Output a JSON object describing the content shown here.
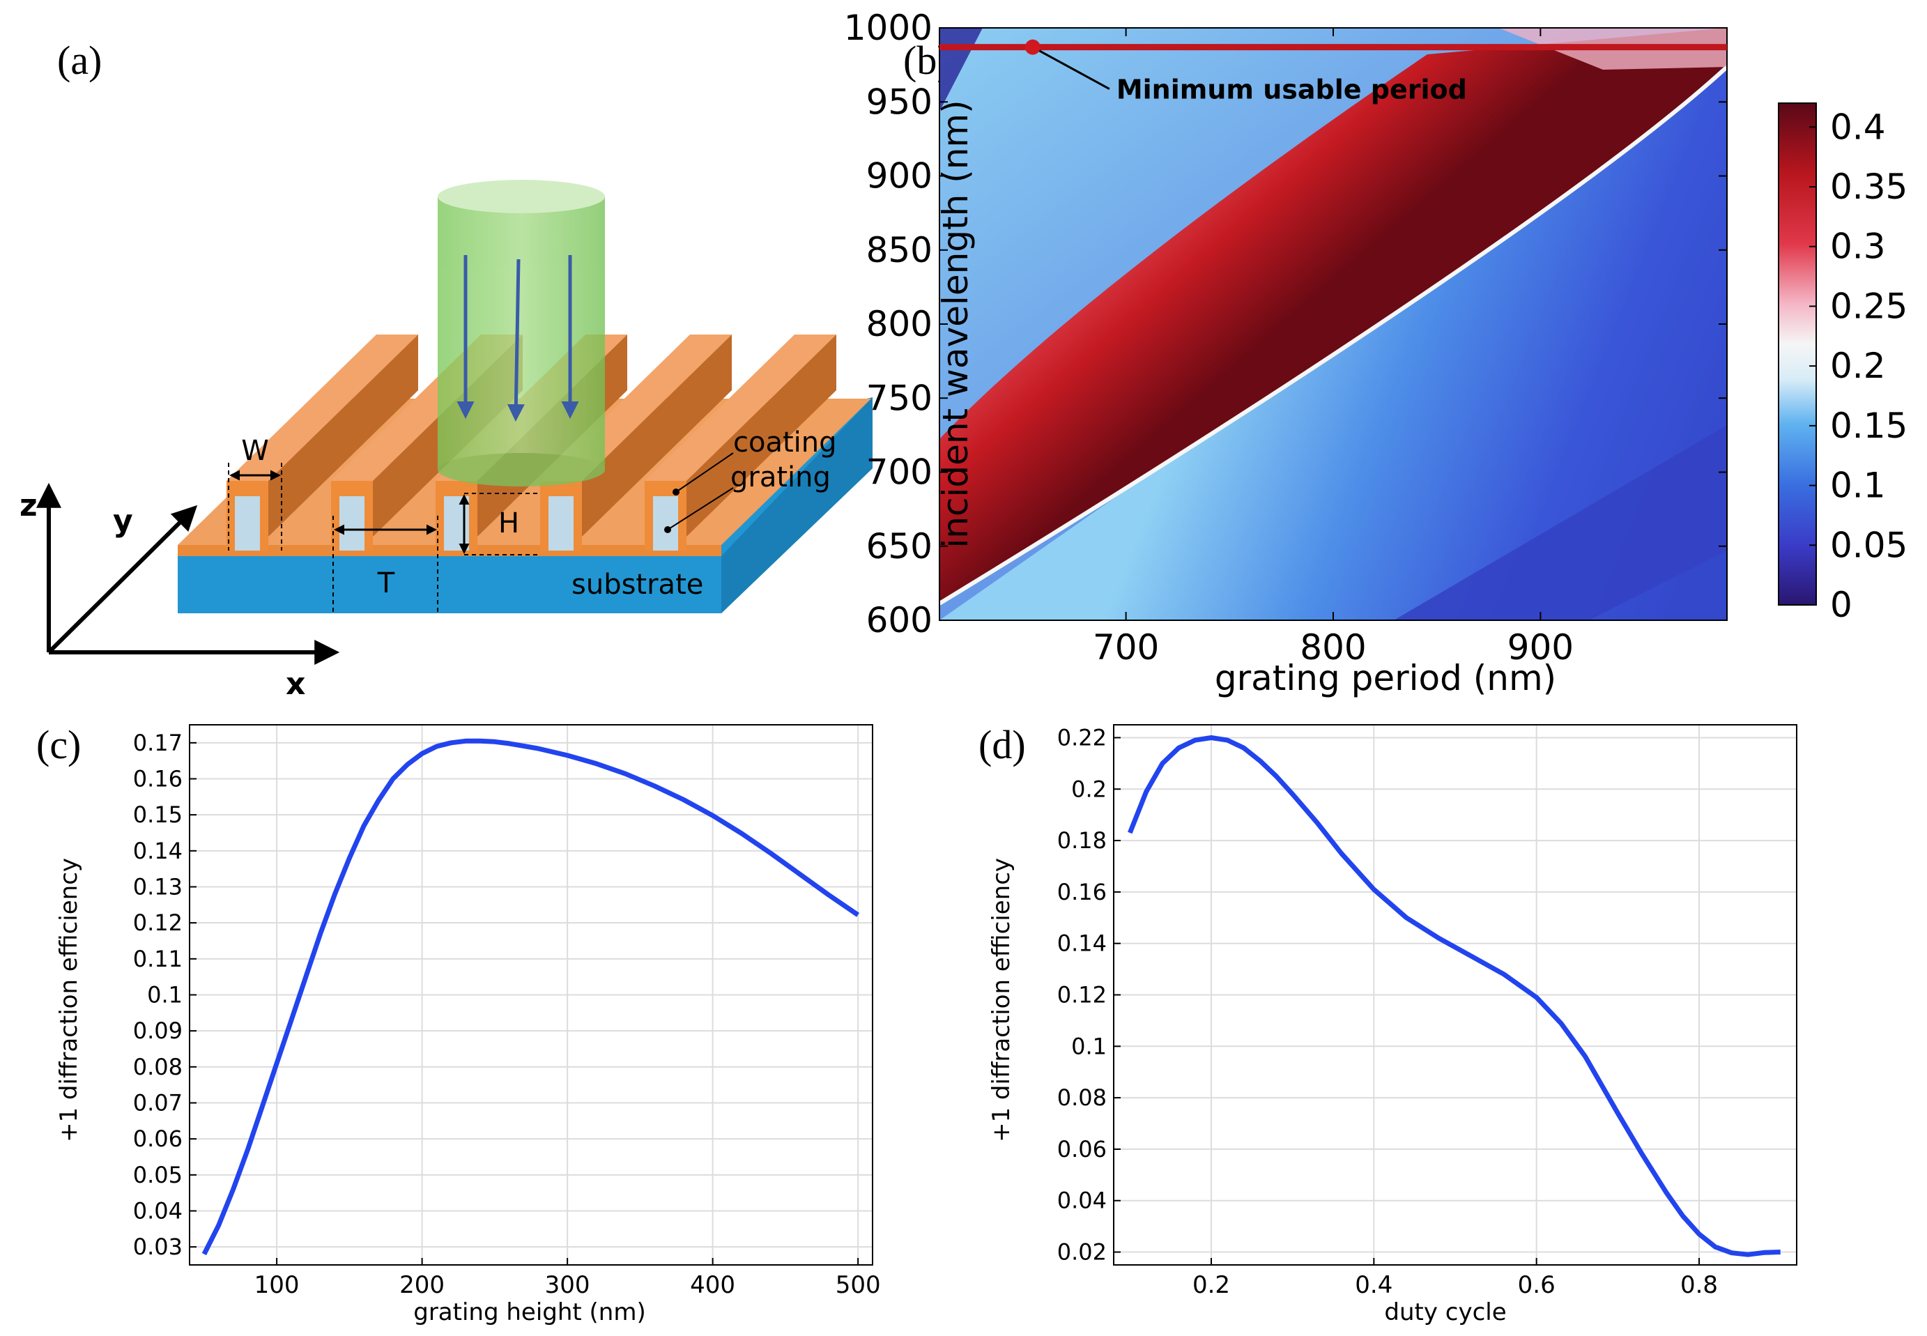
{
  "panels": {
    "a": {
      "label": "(a)",
      "axes": {
        "x": "x",
        "y": "y",
        "z": "z"
      },
      "labels": {
        "W": "W",
        "H": "H",
        "T": "T",
        "coating": "coating",
        "grating": "grating",
        "substrate": "substrate"
      },
      "colors": {
        "grating": "#F0A060",
        "substrate": "#2296D2",
        "beam": "#8ED06A",
        "arrow": "#3A5BA8"
      }
    },
    "b": {
      "label": "(b)"
    },
    "c": {
      "label": "(c)"
    },
    "d": {
      "label": "(d)"
    }
  },
  "chart_data": [
    {
      "id": "b",
      "type": "heatmap",
      "xlabel": "grating period (nm)",
      "ylabel": "incident wavelength (nm)",
      "xlim": [
        610,
        990
      ],
      "ylim": [
        600,
        1000
      ],
      "xticks": [
        700,
        800,
        900
      ],
      "yticks": [
        600,
        650,
        700,
        750,
        800,
        850,
        900,
        950,
        1000
      ],
      "annotation": {
        "text": "Minimum usable period",
        "x": 655,
        "y": 987
      },
      "line": {
        "y": 987,
        "color": "#C0161E"
      },
      "colorbar": {
        "min": 0,
        "max": 0.42,
        "ticks": [
          0,
          0.05,
          0.1,
          0.15,
          0.2,
          0.25,
          0.3,
          0.35,
          0.4
        ]
      }
    },
    {
      "id": "c",
      "type": "line",
      "xlabel": "grating height (nm)",
      "ylabel": "+1 diffraction efficiency",
      "xlim": [
        40,
        510
      ],
      "ylim": [
        0.025,
        0.175
      ],
      "xticks": [
        100,
        200,
        300,
        400,
        500
      ],
      "yticks": [
        0.03,
        0.04,
        0.05,
        0.06,
        0.07,
        0.08,
        0.09,
        0.1,
        0.11,
        0.12,
        0.13,
        0.14,
        0.15,
        0.16,
        0.17
      ],
      "color": "#2244EE",
      "x": [
        50,
        60,
        70,
        80,
        90,
        100,
        110,
        120,
        130,
        140,
        150,
        160,
        170,
        180,
        190,
        200,
        210,
        220,
        230,
        240,
        250,
        260,
        280,
        300,
        320,
        340,
        360,
        380,
        400,
        420,
        440,
        460,
        480,
        500
      ],
      "y": [
        0.028,
        0.036,
        0.046,
        0.057,
        0.069,
        0.081,
        0.093,
        0.105,
        0.117,
        0.128,
        0.138,
        0.147,
        0.154,
        0.16,
        0.164,
        0.167,
        0.169,
        0.17,
        0.1705,
        0.1705,
        0.1703,
        0.1698,
        0.1684,
        0.1665,
        0.1642,
        0.1614,
        0.158,
        0.1542,
        0.1498,
        0.1448,
        0.1393,
        0.1335,
        0.1277,
        0.1222
      ]
    },
    {
      "id": "d",
      "type": "line",
      "xlabel": "duty cycle",
      "ylabel": "+1 diffraction efficiency",
      "xlim": [
        0.08,
        0.92
      ],
      "ylim": [
        0.015,
        0.225
      ],
      "xticks": [
        0.2,
        0.4,
        0.6,
        0.8
      ],
      "yticks": [
        0.02,
        0.04,
        0.06,
        0.08,
        0.1,
        0.12,
        0.14,
        0.16,
        0.18,
        0.2,
        0.22
      ],
      "color": "#2244EE",
      "x": [
        0.1,
        0.12,
        0.14,
        0.16,
        0.18,
        0.2,
        0.22,
        0.24,
        0.26,
        0.28,
        0.3,
        0.33,
        0.36,
        0.4,
        0.44,
        0.48,
        0.52,
        0.56,
        0.6,
        0.63,
        0.66,
        0.7,
        0.73,
        0.76,
        0.78,
        0.8,
        0.82,
        0.84,
        0.86,
        0.88,
        0.9
      ],
      "y": [
        0.183,
        0.199,
        0.21,
        0.216,
        0.219,
        0.22,
        0.219,
        0.216,
        0.211,
        0.205,
        0.198,
        0.187,
        0.175,
        0.161,
        0.15,
        0.142,
        0.135,
        0.128,
        0.119,
        0.109,
        0.096,
        0.074,
        0.058,
        0.043,
        0.034,
        0.027,
        0.022,
        0.0197,
        0.019,
        0.0198,
        0.02
      ]
    }
  ]
}
